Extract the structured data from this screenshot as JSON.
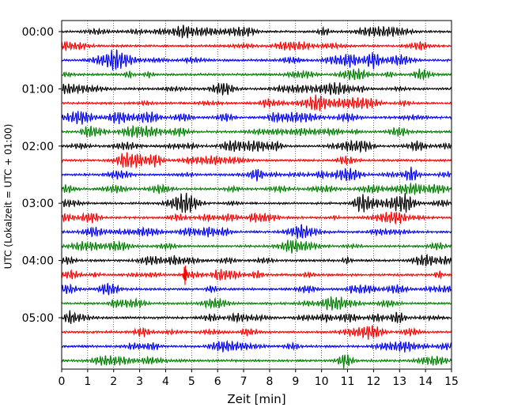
{
  "chart_data": {
    "type": "line",
    "subtype": "seismogram-dayplot",
    "xlabel": "Zeit  [min]",
    "ylabel": "UTC (Lokalzeit = UTC + 01:00)",
    "xlim": [
      0,
      15
    ],
    "x_ticks": [
      0,
      1,
      2,
      3,
      4,
      5,
      6,
      7,
      8,
      9,
      10,
      11,
      12,
      13,
      14,
      15
    ],
    "x_tick_labels": [
      "0",
      "1",
      "2",
      "3",
      "4",
      "5",
      "6",
      "7",
      "8",
      "9",
      "10",
      "11",
      "12",
      "13",
      "14",
      "15"
    ],
    "y_tick_labels": [
      "00:00",
      "01:00",
      "02:00",
      "03:00",
      "04:00",
      "05:00"
    ],
    "y_tick_rows": [
      0,
      4,
      8,
      12,
      16,
      20
    ],
    "trace_count": 24,
    "trace_minutes": 15,
    "trace_colors": [
      "#000000",
      "#ff0000",
      "#0000ff",
      "#008000"
    ],
    "vertical_grid": "dotted",
    "events": [
      {
        "trace": 17,
        "minute": 4.75,
        "amplitude": 2.0
      }
    ]
  }
}
